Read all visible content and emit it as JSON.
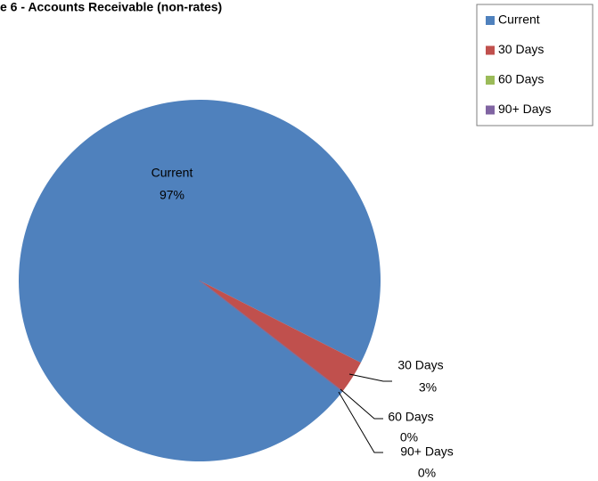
{
  "chart_data": {
    "type": "pie",
    "title": "e 6 - Accounts Receivable (non-rates)",
    "categories": [
      "Current",
      "30 Days",
      "60 Days",
      "90+ Days"
    ],
    "values": [
      97,
      3,
      0,
      0
    ],
    "value_labels": [
      "97%",
      "3%",
      "0%",
      "0%"
    ],
    "colors": [
      "#4f81bd",
      "#c0504d",
      "#9bbb59",
      "#8064a2"
    ],
    "legend": "top-right"
  }
}
